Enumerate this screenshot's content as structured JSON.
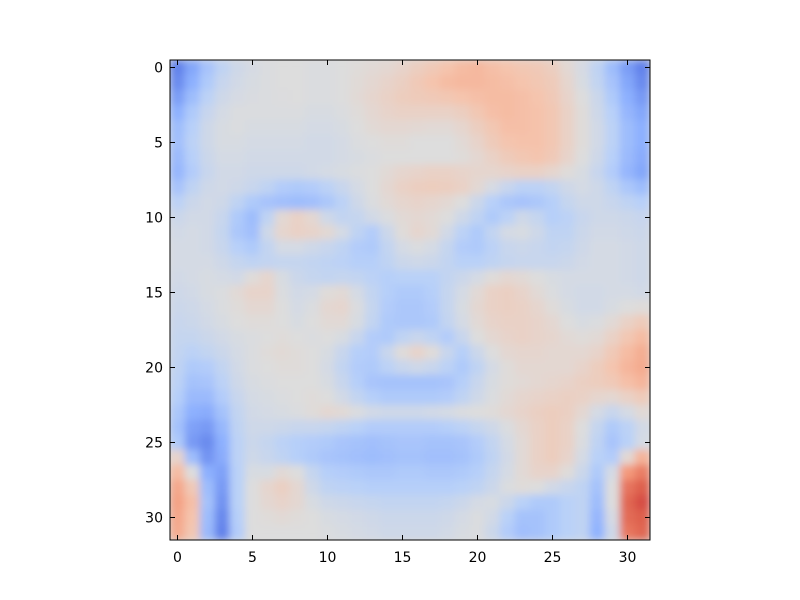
{
  "chart_data": {
    "type": "heatmap",
    "title": "",
    "xlabel": "",
    "ylabel": "",
    "rows": 32,
    "cols": 32,
    "xlim": [
      -0.5,
      31.5
    ],
    "ylim": [
      31.5,
      -0.5
    ],
    "x_ticks": [
      0,
      5,
      10,
      15,
      20,
      25,
      30
    ],
    "y_ticks": [
      0,
      5,
      10,
      15,
      20,
      25,
      30
    ],
    "x_tick_labels": [
      "0",
      "5",
      "10",
      "15",
      "20",
      "25",
      "30"
    ],
    "y_tick_labels": [
      "0",
      "5",
      "10",
      "15",
      "20",
      "25",
      "30"
    ],
    "colormap": "coolwarm",
    "value_range": [
      -1,
      1
    ],
    "grid": false,
    "legend": "none",
    "colors": {
      "cool_end": "#3b4cc0",
      "neutral": "#dddddd",
      "warm_end": "#b40426"
    },
    "values": [
      [
        -0.75,
        -0.55,
        -0.35,
        -0.2,
        -0.1,
        -0.05,
        -0.02,
        0.0,
        0.0,
        -0.02,
        -0.02,
        0.0,
        0.02,
        0.04,
        0.06,
        0.1,
        0.15,
        0.2,
        0.25,
        0.3,
        0.32,
        0.28,
        0.25,
        0.22,
        0.2,
        0.15,
        0.05,
        -0.05,
        -0.2,
        -0.4,
        -0.6,
        -0.75
      ],
      [
        -0.7,
        -0.5,
        -0.3,
        -0.15,
        -0.08,
        -0.04,
        -0.02,
        0.0,
        0.0,
        -0.02,
        -0.02,
        0.0,
        0.03,
        0.06,
        0.1,
        0.14,
        0.2,
        0.25,
        0.3,
        0.32,
        0.32,
        0.3,
        0.28,
        0.25,
        0.22,
        0.18,
        0.08,
        -0.04,
        -0.18,
        -0.35,
        -0.55,
        -0.7
      ],
      [
        -0.6,
        -0.4,
        -0.22,
        -0.1,
        -0.05,
        -0.03,
        -0.02,
        -0.01,
        0.0,
        -0.02,
        -0.02,
        0.0,
        0.04,
        0.08,
        0.12,
        0.16,
        0.18,
        0.2,
        0.22,
        0.25,
        0.28,
        0.3,
        0.3,
        0.28,
        0.25,
        0.2,
        0.1,
        0.0,
        -0.12,
        -0.3,
        -0.5,
        -0.62
      ],
      [
        -0.5,
        -0.3,
        -0.15,
        -0.06,
        -0.02,
        -0.02,
        -0.02,
        -0.02,
        -0.02,
        -0.04,
        -0.04,
        -0.02,
        0.02,
        0.06,
        0.1,
        0.12,
        0.12,
        0.12,
        0.12,
        0.15,
        0.22,
        0.28,
        0.3,
        0.28,
        0.26,
        0.22,
        0.12,
        0.02,
        -0.1,
        -0.25,
        -0.45,
        -0.55
      ],
      [
        -0.4,
        -0.25,
        -0.1,
        -0.04,
        -0.02,
        -0.04,
        -0.04,
        -0.04,
        -0.04,
        -0.06,
        -0.06,
        -0.04,
        0.0,
        0.04,
        0.06,
        0.06,
        0.05,
        0.04,
        0.04,
        0.08,
        0.15,
        0.22,
        0.28,
        0.28,
        0.26,
        0.22,
        0.12,
        0.02,
        -0.08,
        -0.22,
        -0.4,
        -0.5
      ],
      [
        -0.38,
        -0.22,
        -0.1,
        -0.04,
        -0.04,
        -0.06,
        -0.06,
        -0.06,
        -0.06,
        -0.08,
        -0.08,
        -0.06,
        -0.02,
        0.0,
        0.02,
        0.02,
        0.0,
        0.0,
        0.0,
        0.04,
        0.1,
        0.18,
        0.24,
        0.26,
        0.26,
        0.22,
        0.12,
        0.02,
        -0.08,
        -0.22,
        -0.4,
        -0.5
      ],
      [
        -0.42,
        -0.25,
        -0.12,
        -0.06,
        -0.06,
        -0.08,
        -0.08,
        -0.08,
        -0.08,
        -0.08,
        -0.08,
        -0.06,
        -0.04,
        -0.02,
        0.0,
        0.0,
        0.0,
        0.0,
        0.0,
        0.02,
        0.06,
        0.12,
        0.18,
        0.22,
        0.24,
        0.2,
        0.1,
        0.0,
        -0.1,
        -0.25,
        -0.42,
        -0.52
      ],
      [
        -0.45,
        -0.28,
        -0.14,
        -0.08,
        -0.08,
        -0.1,
        -0.1,
        -0.1,
        -0.1,
        -0.08,
        -0.06,
        -0.04,
        -0.02,
        0.0,
        0.04,
        0.08,
        0.1,
        0.12,
        0.12,
        0.1,
        0.08,
        0.08,
        0.1,
        0.12,
        0.12,
        0.08,
        0.02,
        -0.04,
        -0.14,
        -0.28,
        -0.45,
        -0.55
      ],
      [
        -0.35,
        -0.2,
        -0.1,
        -0.08,
        -0.1,
        -0.14,
        -0.2,
        -0.28,
        -0.3,
        -0.28,
        -0.22,
        -0.14,
        -0.06,
        0.0,
        0.06,
        0.12,
        0.15,
        0.16,
        0.15,
        0.12,
        0.05,
        -0.05,
        -0.15,
        -0.22,
        -0.22,
        -0.18,
        -0.1,
        -0.06,
        -0.1,
        -0.2,
        -0.32,
        -0.4
      ],
      [
        -0.22,
        -0.12,
        -0.08,
        -0.1,
        -0.2,
        -0.3,
        -0.35,
        -0.38,
        -0.4,
        -0.38,
        -0.32,
        -0.22,
        -0.1,
        -0.02,
        0.04,
        0.08,
        0.1,
        0.08,
        0.05,
        0.0,
        -0.12,
        -0.25,
        -0.32,
        -0.35,
        -0.32,
        -0.26,
        -0.16,
        -0.1,
        -0.1,
        -0.14,
        -0.2,
        -0.25
      ],
      [
        -0.12,
        -0.08,
        -0.08,
        -0.14,
        -0.3,
        -0.4,
        -0.2,
        0.05,
        0.12,
        0.06,
        -0.1,
        -0.18,
        -0.16,
        -0.08,
        -0.02,
        0.04,
        0.06,
        0.04,
        0.0,
        -0.1,
        -0.2,
        -0.3,
        -0.22,
        -0.1,
        -0.16,
        -0.26,
        -0.22,
        -0.14,
        -0.1,
        -0.1,
        -0.12,
        -0.15
      ],
      [
        -0.08,
        -0.06,
        -0.08,
        -0.16,
        -0.32,
        -0.38,
        -0.1,
        0.08,
        0.12,
        0.1,
        0.05,
        -0.06,
        -0.2,
        -0.28,
        -0.12,
        0.02,
        0.08,
        0.04,
        -0.08,
        -0.22,
        -0.3,
        -0.18,
        -0.06,
        -0.04,
        -0.1,
        -0.2,
        -0.2,
        -0.12,
        -0.08,
        -0.08,
        -0.1,
        -0.12
      ],
      [
        -0.06,
        -0.06,
        -0.08,
        -0.14,
        -0.25,
        -0.3,
        -0.18,
        -0.06,
        -0.06,
        -0.1,
        -0.14,
        -0.2,
        -0.28,
        -0.3,
        -0.18,
        -0.06,
        -0.02,
        -0.06,
        -0.16,
        -0.28,
        -0.3,
        -0.22,
        -0.14,
        -0.12,
        -0.14,
        -0.18,
        -0.16,
        -0.1,
        -0.06,
        -0.06,
        -0.08,
        -0.1
      ],
      [
        -0.06,
        -0.06,
        -0.06,
        -0.1,
        -0.16,
        -0.2,
        -0.18,
        -0.16,
        -0.16,
        -0.18,
        -0.2,
        -0.22,
        -0.26,
        -0.26,
        -0.2,
        -0.12,
        -0.1,
        -0.12,
        -0.18,
        -0.24,
        -0.24,
        -0.2,
        -0.16,
        -0.14,
        -0.14,
        -0.14,
        -0.12,
        -0.08,
        -0.06,
        -0.06,
        -0.08,
        -0.1
      ],
      [
        -0.08,
        -0.06,
        -0.04,
        -0.06,
        -0.08,
        0.02,
        0.08,
        -0.04,
        -0.12,
        -0.16,
        -0.18,
        -0.16,
        -0.18,
        -0.22,
        -0.26,
        -0.24,
        -0.24,
        -0.24,
        -0.18,
        -0.12,
        -0.06,
        0.02,
        0.06,
        0.04,
        0.0,
        -0.04,
        -0.06,
        -0.06,
        -0.06,
        -0.06,
        -0.08,
        -0.1
      ],
      [
        -0.1,
        -0.08,
        -0.04,
        -0.02,
        0.04,
        0.1,
        0.1,
        -0.02,
        -0.08,
        -0.06,
        0.02,
        0.04,
        -0.06,
        -0.18,
        -0.26,
        -0.3,
        -0.3,
        -0.26,
        -0.16,
        -0.06,
        0.04,
        0.12,
        0.14,
        0.1,
        0.04,
        -0.02,
        -0.06,
        -0.08,
        -0.08,
        -0.06,
        -0.06,
        -0.08
      ],
      [
        -0.12,
        -0.1,
        -0.06,
        -0.02,
        0.02,
        0.06,
        0.06,
        0.0,
        -0.06,
        -0.02,
        0.06,
        0.08,
        -0.02,
        -0.16,
        -0.28,
        -0.32,
        -0.32,
        -0.28,
        -0.16,
        -0.04,
        0.06,
        0.12,
        0.14,
        0.12,
        0.08,
        0.02,
        -0.04,
        -0.08,
        -0.08,
        -0.04,
        0.0,
        0.02
      ],
      [
        -0.14,
        -0.12,
        -0.08,
        -0.04,
        0.0,
        0.02,
        0.02,
        0.0,
        -0.04,
        0.0,
        0.04,
        0.04,
        -0.04,
        -0.18,
        -0.3,
        -0.32,
        -0.32,
        -0.3,
        -0.18,
        -0.06,
        0.04,
        0.1,
        0.12,
        0.12,
        0.1,
        0.06,
        0.0,
        -0.04,
        -0.02,
        0.04,
        0.12,
        0.18
      ],
      [
        -0.16,
        -0.16,
        -0.12,
        -0.08,
        -0.04,
        -0.02,
        0.0,
        0.02,
        0.0,
        -0.02,
        0.0,
        -0.04,
        -0.14,
        -0.28,
        -0.3,
        -0.2,
        -0.14,
        -0.2,
        -0.28,
        -0.14,
        0.0,
        0.06,
        0.1,
        0.12,
        0.1,
        0.08,
        0.04,
        0.02,
        0.04,
        0.12,
        0.22,
        0.3
      ],
      [
        -0.18,
        -0.22,
        -0.18,
        -0.12,
        -0.06,
        -0.02,
        0.02,
        0.04,
        0.02,
        0.0,
        -0.04,
        -0.14,
        -0.26,
        -0.28,
        -0.14,
        0.02,
        0.1,
        0.02,
        -0.14,
        -0.26,
        -0.12,
        0.0,
        0.06,
        0.08,
        0.08,
        0.06,
        0.06,
        0.06,
        0.1,
        0.2,
        0.3,
        0.38
      ],
      [
        -0.2,
        -0.3,
        -0.28,
        -0.18,
        -0.08,
        -0.02,
        0.0,
        0.02,
        0.02,
        0.0,
        -0.06,
        -0.18,
        -0.28,
        -0.3,
        -0.22,
        -0.14,
        -0.1,
        -0.14,
        -0.22,
        -0.3,
        -0.2,
        -0.06,
        0.02,
        0.06,
        0.06,
        0.06,
        0.06,
        0.1,
        0.16,
        0.24,
        0.34,
        0.4
      ],
      [
        -0.22,
        -0.36,
        -0.34,
        -0.22,
        -0.1,
        -0.04,
        -0.02,
        0.0,
        0.0,
        0.0,
        -0.04,
        -0.14,
        -0.26,
        -0.34,
        -0.36,
        -0.36,
        -0.36,
        -0.36,
        -0.34,
        -0.26,
        -0.14,
        -0.04,
        0.02,
        0.04,
        0.06,
        0.08,
        0.1,
        0.14,
        0.16,
        0.2,
        0.28,
        0.34
      ],
      [
        -0.26,
        -0.42,
        -0.42,
        -0.28,
        -0.14,
        -0.06,
        -0.04,
        -0.02,
        0.0,
        0.02,
        0.0,
        -0.08,
        -0.18,
        -0.26,
        -0.3,
        -0.3,
        -0.3,
        -0.3,
        -0.28,
        -0.2,
        -0.1,
        -0.02,
        0.04,
        0.08,
        0.1,
        0.12,
        0.14,
        0.12,
        0.08,
        0.06,
        0.12,
        0.18
      ],
      [
        -0.32,
        -0.5,
        -0.52,
        -0.36,
        -0.18,
        -0.08,
        -0.06,
        -0.04,
        -0.02,
        0.02,
        0.06,
        0.04,
        -0.02,
        -0.08,
        -0.1,
        -0.1,
        -0.1,
        -0.08,
        -0.06,
        -0.02,
        0.0,
        0.02,
        0.06,
        0.1,
        0.14,
        0.16,
        0.14,
        0.06,
        -0.06,
        -0.14,
        -0.06,
        0.04
      ],
      [
        -0.36,
        -0.58,
        -0.62,
        -0.44,
        -0.2,
        -0.1,
        -0.1,
        -0.12,
        -0.14,
        -0.14,
        -0.16,
        -0.2,
        -0.24,
        -0.28,
        -0.28,
        -0.28,
        -0.28,
        -0.28,
        -0.26,
        -0.22,
        -0.16,
        -0.1,
        -0.02,
        0.06,
        0.12,
        0.16,
        0.12,
        0.0,
        -0.16,
        -0.3,
        -0.22,
        -0.08
      ],
      [
        -0.3,
        -0.62,
        -0.7,
        -0.5,
        -0.22,
        -0.12,
        -0.16,
        -0.22,
        -0.26,
        -0.28,
        -0.3,
        -0.34,
        -0.36,
        -0.38,
        -0.36,
        -0.34,
        -0.34,
        -0.36,
        -0.36,
        -0.34,
        -0.28,
        -0.18,
        -0.06,
        0.04,
        0.12,
        0.16,
        0.12,
        -0.02,
        -0.2,
        -0.34,
        -0.24,
        -0.06
      ],
      [
        0.1,
        -0.4,
        -0.65,
        -0.52,
        -0.22,
        -0.1,
        -0.14,
        -0.2,
        -0.26,
        -0.3,
        -0.34,
        -0.36,
        -0.38,
        -0.4,
        -0.38,
        -0.36,
        -0.36,
        -0.38,
        -0.38,
        -0.36,
        -0.3,
        -0.2,
        -0.08,
        0.04,
        0.12,
        0.16,
        0.1,
        -0.06,
        -0.24,
        -0.28,
        0.05,
        0.35
      ],
      [
        0.3,
        0.0,
        -0.5,
        -0.58,
        -0.24,
        -0.04,
        -0.04,
        0.04,
        0.0,
        -0.16,
        -0.26,
        -0.28,
        -0.3,
        -0.32,
        -0.32,
        -0.3,
        -0.3,
        -0.32,
        -0.32,
        -0.3,
        -0.26,
        -0.16,
        -0.06,
        0.04,
        0.1,
        0.1,
        0.02,
        -0.12,
        -0.3,
        -0.06,
        0.5,
        0.62
      ],
      [
        0.42,
        0.2,
        -0.4,
        -0.62,
        -0.24,
        0.0,
        0.08,
        0.14,
        0.06,
        -0.1,
        -0.2,
        -0.22,
        -0.24,
        -0.26,
        -0.26,
        -0.26,
        -0.26,
        -0.26,
        -0.26,
        -0.24,
        -0.2,
        -0.12,
        -0.02,
        0.02,
        0.0,
        -0.08,
        -0.14,
        -0.2,
        -0.36,
        0.0,
        0.66,
        0.75
      ],
      [
        0.45,
        0.28,
        -0.36,
        -0.66,
        -0.24,
        0.0,
        0.06,
        0.1,
        0.06,
        -0.04,
        -0.1,
        -0.12,
        -0.14,
        -0.16,
        -0.18,
        -0.18,
        -0.18,
        -0.18,
        -0.16,
        -0.12,
        -0.06,
        -0.04,
        -0.12,
        -0.24,
        -0.3,
        -0.3,
        -0.24,
        -0.2,
        -0.4,
        0.0,
        0.72,
        0.8
      ],
      [
        0.42,
        0.25,
        -0.4,
        -0.72,
        -0.26,
        0.0,
        0.02,
        0.04,
        0.02,
        0.0,
        -0.04,
        -0.06,
        -0.08,
        -0.1,
        -0.12,
        -0.12,
        -0.12,
        -0.12,
        -0.1,
        -0.06,
        -0.02,
        -0.08,
        -0.24,
        -0.36,
        -0.36,
        -0.3,
        -0.24,
        -0.2,
        -0.45,
        -0.05,
        0.7,
        0.75
      ],
      [
        0.4,
        0.22,
        -0.42,
        -0.75,
        -0.28,
        0.0,
        0.0,
        0.0,
        0.0,
        0.0,
        -0.02,
        -0.04,
        -0.06,
        -0.08,
        -0.1,
        -0.1,
        -0.1,
        -0.1,
        -0.08,
        -0.04,
        -0.02,
        -0.12,
        -0.28,
        -0.38,
        -0.36,
        -0.3,
        -0.24,
        -0.2,
        -0.48,
        -0.1,
        0.65,
        0.72
      ]
    ]
  }
}
